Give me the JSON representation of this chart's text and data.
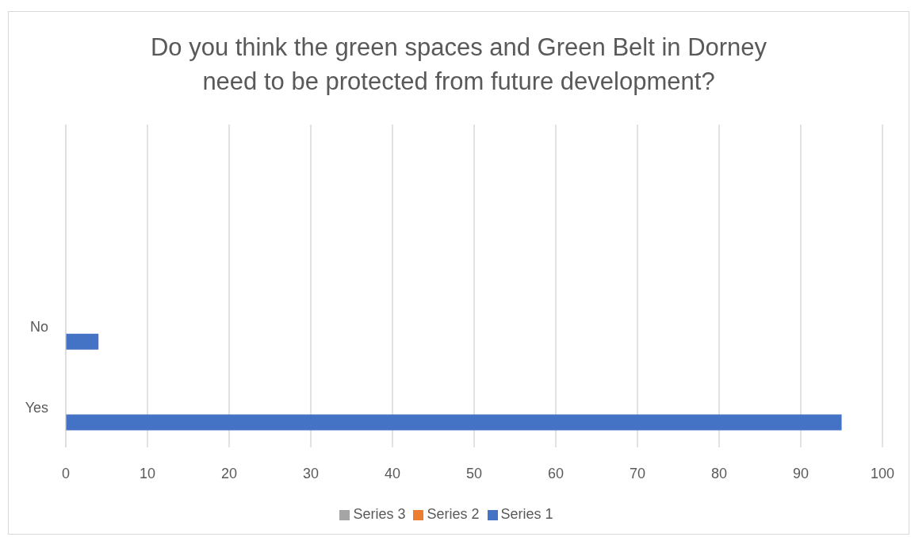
{
  "chart_data": {
    "type": "bar",
    "orientation": "horizontal",
    "title": "Do you think the green spaces and Green Belt in Dorney need to be protected from future development?",
    "categories": [
      null,
      null,
      "No",
      "Yes"
    ],
    "series": [
      {
        "name": "Series 1",
        "color": "#4472c4",
        "values": [
          null,
          null,
          4,
          95
        ]
      },
      {
        "name": "Series 2",
        "color": "#ed7d31",
        "values": [
          null,
          null,
          null,
          null
        ]
      },
      {
        "name": "Series 3",
        "color": "#a5a5a5",
        "values": [
          null,
          null,
          null,
          null
        ]
      }
    ],
    "xlim": [
      0,
      100
    ],
    "xticks": [
      0,
      10,
      20,
      30,
      40,
      50,
      60,
      70,
      80,
      90,
      100
    ],
    "grid": "x",
    "legend": "bottom"
  }
}
